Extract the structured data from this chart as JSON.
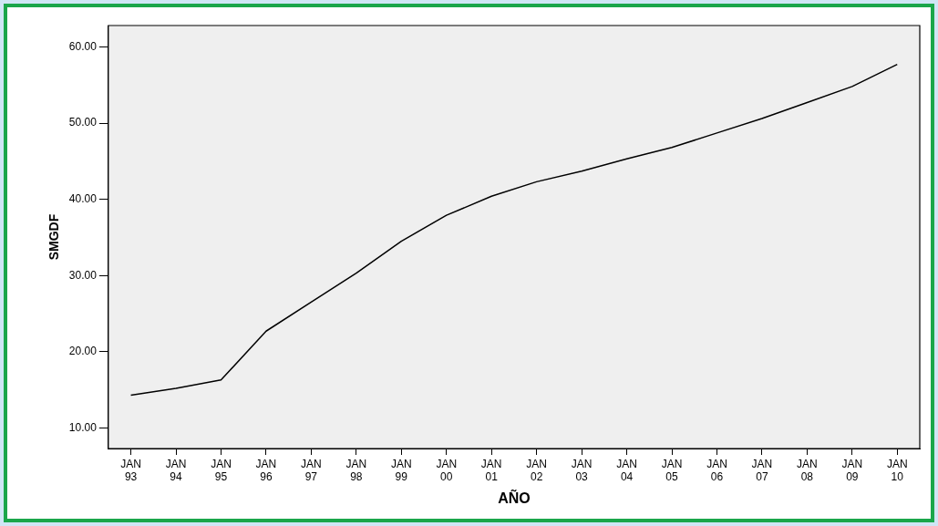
{
  "chart_data": {
    "type": "line",
    "xlabel": "AÑO",
    "ylabel": "SMGDF",
    "categories": [
      "JAN 93",
      "JAN 94",
      "JAN 95",
      "JAN 96",
      "JAN 97",
      "JAN 98",
      "JAN 99",
      "JAN 00",
      "JAN 01",
      "JAN 02",
      "JAN 03",
      "JAN 04",
      "JAN 05",
      "JAN 06",
      "JAN 07",
      "JAN 08",
      "JAN 09",
      "JAN 10"
    ],
    "series": [
      {
        "color": "#000000",
        "values": [
          14.3,
          15.2,
          16.3,
          22.7,
          26.5,
          30.3,
          34.5,
          37.9,
          40.4,
          42.3,
          43.7,
          45.3,
          46.8,
          48.7,
          50.6,
          52.7,
          54.8,
          57.7
        ]
      }
    ],
    "ylim": [
      7.3,
      62.8
    ],
    "yticks": [
      {
        "value": 10,
        "label": "10.00"
      },
      {
        "value": 20,
        "label": "20.00"
      },
      {
        "value": 30,
        "label": "30.00"
      },
      {
        "value": 40,
        "label": "40.00"
      },
      {
        "value": 50,
        "label": "50.00"
      },
      {
        "value": 60,
        "label": "60.00"
      }
    ],
    "grid": false,
    "legend": false,
    "marker": "none",
    "line_style": "solid"
  }
}
